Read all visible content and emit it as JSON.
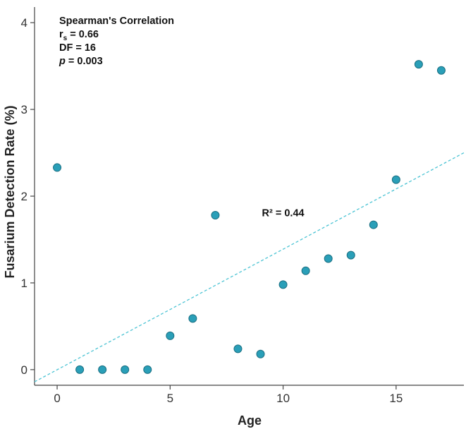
{
  "chart_data": {
    "type": "scatter",
    "xlabel": "Age",
    "ylabel": "Fusarium Detection Rate (%)",
    "xlim": [
      -1,
      18
    ],
    "ylim": [
      -0.18,
      4.18
    ],
    "xticks": [
      0,
      5,
      10,
      15
    ],
    "yticks": [
      0,
      1,
      2,
      3,
      4
    ],
    "grid": false,
    "points": {
      "x": [
        0,
        1,
        2,
        3,
        4,
        5,
        6,
        7,
        8,
        9,
        10,
        11,
        12,
        13,
        14,
        15,
        16,
        17
      ],
      "y": [
        2.33,
        0.0,
        0.0,
        0.0,
        0.0,
        0.39,
        0.59,
        1.78,
        0.24,
        0.18,
        0.98,
        1.14,
        1.28,
        1.32,
        1.67,
        2.19,
        3.52,
        3.45
      ]
    },
    "trendline": {
      "style": "dashed",
      "x": [
        -1,
        18
      ],
      "y": [
        -0.14,
        2.5
      ],
      "label": "R² = 0.44",
      "label_at": [
        10,
        1.77
      ]
    },
    "statistics": {
      "title": "Spearman's Correlation",
      "rs_symbol": "r",
      "rs_subscript": "s",
      "rs_value": " = 0.66",
      "df": "DF = 16",
      "p_symbol": "p",
      "p_value": " = 0.003"
    },
    "colors": {
      "point_fill": "#2a9fb8",
      "point_stroke": "#1a6f82",
      "trendline": "#4cc4d4",
      "axis": "#444444"
    }
  }
}
